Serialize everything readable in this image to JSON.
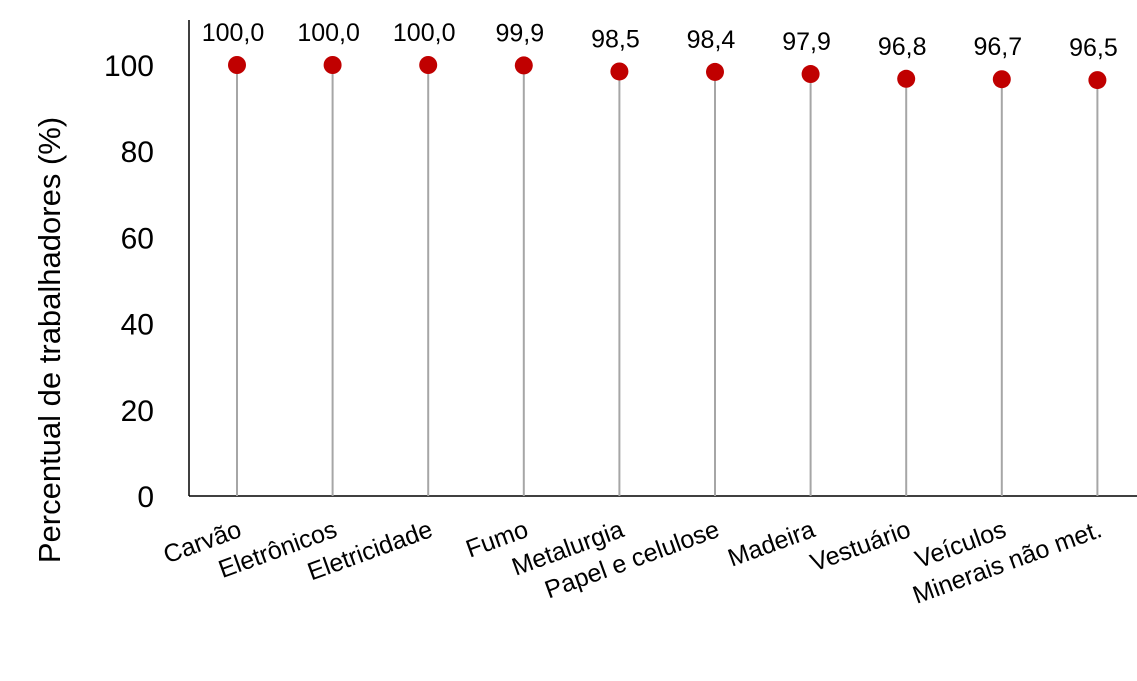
{
  "chart_data": {
    "type": "lollipop",
    "title": "",
    "xlabel": "",
    "ylabel": "Percentual de trabalhadores (%)",
    "ylim": [
      0,
      100
    ],
    "yticks": [
      "0",
      "20",
      "40",
      "60",
      "80",
      "100"
    ],
    "categories": [
      "Carvão",
      "Eletrônicos",
      "Eletricidade",
      "Fumo",
      "Metalurgia",
      "Papel e celulose",
      "Madeira",
      "Vestuário",
      "Veículos",
      "Minerais não met."
    ],
    "values": [
      100.0,
      100.0,
      100.0,
      99.9,
      98.5,
      98.4,
      97.9,
      96.8,
      96.7,
      96.5
    ],
    "data_labels": [
      "100,0",
      "100,0",
      "100,0",
      "99,9",
      "98,5",
      "98,4",
      "97,9",
      "96,8",
      "96,7",
      "96,5"
    ],
    "grid": false,
    "legend": "none",
    "colors": {
      "marker": "#c00000",
      "stem": "#a6a6a6",
      "axis": "#000000"
    }
  }
}
